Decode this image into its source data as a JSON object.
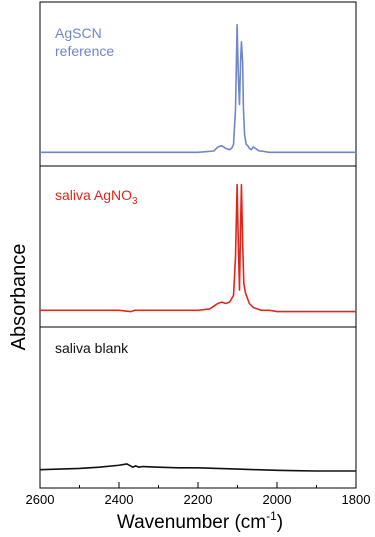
{
  "chart_data": {
    "type": "line",
    "layout": "stacked-panels",
    "xlabel": "Wavenumber (cm",
    "xlabel_superscript": "-1",
    "xlabel_suffix": ")",
    "ylabel": "Absorbance",
    "xlim": [
      2600,
      1800
    ],
    "x_reversed": true,
    "xticks": [
      2600,
      2400,
      2200,
      2000,
      1800
    ],
    "y_ticks_shown": false,
    "panels": [
      {
        "label": "AgSCN",
        "label_line2": "reference",
        "color": "#6f86c8",
        "ylim": [
          0,
          1
        ],
        "x": [
          2600,
          2400,
          2300,
          2200,
          2160,
          2150,
          2140,
          2130,
          2120,
          2115,
          2110,
          2105,
          2101,
          2098,
          2095,
          2092,
          2090,
          2087,
          2085,
          2082,
          2078,
          2074,
          2070,
          2065,
          2060,
          2055,
          2050,
          2045,
          2040,
          2020,
          2000,
          1900,
          1800
        ],
        "y": [
          0.02,
          0.02,
          0.02,
          0.02,
          0.03,
          0.06,
          0.07,
          0.05,
          0.04,
          0.05,
          0.08,
          0.35,
          0.98,
          0.6,
          0.38,
          0.72,
          0.85,
          0.7,
          0.35,
          0.15,
          0.08,
          0.07,
          0.05,
          0.04,
          0.06,
          0.05,
          0.04,
          0.03,
          0.03,
          0.02,
          0.02,
          0.02,
          0.02
        ]
      },
      {
        "label": "saliva AgNO",
        "label_sub": "3",
        "color": "#e0271c",
        "ylim": [
          0,
          1
        ],
        "x": [
          2600,
          2400,
          2370,
          2360,
          2300,
          2200,
          2170,
          2160,
          2150,
          2140,
          2130,
          2120,
          2110,
          2105,
          2101,
          2098,
          2095,
          2092,
          2090,
          2087,
          2084,
          2080,
          2075,
          2070,
          2060,
          2050,
          2040,
          2020,
          2000,
          1900,
          1800
        ],
        "y": [
          0.05,
          0.05,
          0.04,
          0.05,
          0.05,
          0.05,
          0.06,
          0.08,
          0.1,
          0.11,
          0.1,
          0.11,
          0.16,
          0.45,
          0.98,
          0.55,
          0.2,
          0.7,
          0.98,
          0.55,
          0.25,
          0.18,
          0.14,
          0.1,
          0.07,
          0.06,
          0.05,
          0.05,
          0.04,
          0.04,
          0.04
        ]
      },
      {
        "label": "saliva blank",
        "color": "#111111",
        "ylim": [
          0,
          1
        ],
        "x": [
          2600,
          2550,
          2500,
          2450,
          2400,
          2380,
          2365,
          2358,
          2350,
          2340,
          2300,
          2250,
          2200,
          2150,
          2100,
          2050,
          2000,
          1950,
          1900,
          1850,
          1800
        ],
        "y": [
          0.02,
          0.03,
          0.04,
          0.06,
          0.09,
          0.11,
          0.06,
          0.08,
          0.06,
          0.07,
          0.06,
          0.05,
          0.05,
          0.04,
          0.03,
          0.02,
          0.01,
          0.005,
          0.0,
          0.0,
          0.0
        ]
      }
    ]
  }
}
